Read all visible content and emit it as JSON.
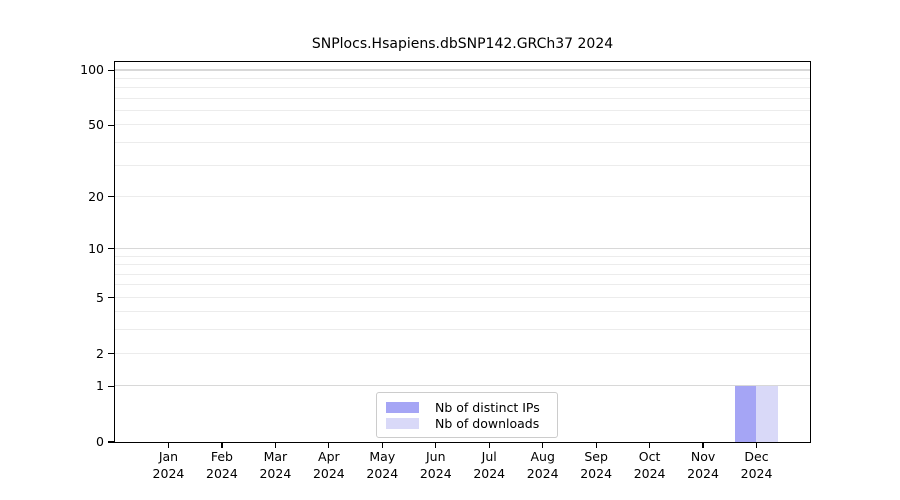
{
  "chart_data": {
    "type": "bar",
    "title": "SNPlocs.Hsapiens.dbSNP142.GRCh37 2024",
    "categories": [
      "Jan 2024",
      "Feb 2024",
      "Mar 2024",
      "Apr 2024",
      "May 2024",
      "Jun 2024",
      "Jul 2024",
      "Aug 2024",
      "Sep 2024",
      "Oct 2024",
      "Nov 2024",
      "Dec 2024"
    ],
    "series": [
      {
        "name": "Nb of distinct IPs",
        "color": "#a5a5f5",
        "values": [
          0,
          0,
          0,
          0,
          0,
          0,
          0,
          0,
          0,
          0,
          0,
          1
        ]
      },
      {
        "name": "Nb of downloads",
        "color": "#d9d9f8",
        "values": [
          0,
          0,
          0,
          0,
          0,
          0,
          0,
          0,
          0,
          0,
          0,
          1
        ]
      }
    ],
    "xlabel": "",
    "ylabel": "",
    "y_scale": "log1p",
    "y_ticks": [
      0,
      1,
      2,
      5,
      10,
      20,
      50,
      100
    ],
    "y_gridlines_major": [
      1,
      10,
      100
    ],
    "y_gridlines_minor": [
      2,
      3,
      4,
      5,
      6,
      7,
      8,
      9,
      20,
      30,
      40,
      50,
      60,
      70,
      80,
      90
    ],
    "ylim": [
      0,
      111
    ],
    "grid": true,
    "legend_position": "lower center"
  },
  "colors": {
    "axis": "#000000",
    "grid_minor": "#ececec",
    "grid_major": "#d8d8d8",
    "legend_border": "#cccccc",
    "background": "#ffffff"
  }
}
